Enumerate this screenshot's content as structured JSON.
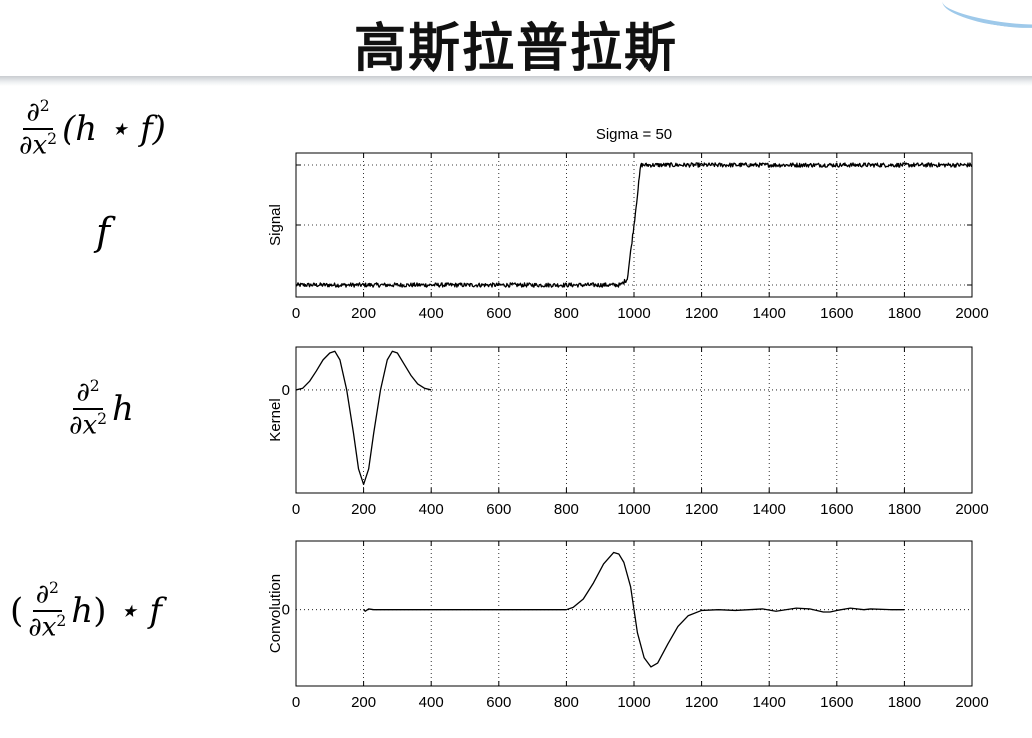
{
  "title": "高斯拉普拉斯",
  "formulas": {
    "top_derivative": "∂²/∂x²(h ⋆ f)",
    "signal": "f",
    "kernel": "∂²/∂x² h",
    "convolution": "(∂²/∂x² h) ⋆ f"
  },
  "colors": {
    "line": "#000000",
    "grid": "#000000",
    "axis": "#000000",
    "title_bar": "#c9ccd0"
  },
  "chart_data": [
    {
      "type": "line",
      "title": "Sigma = 50",
      "ylabel": "Signal",
      "xlabel": "",
      "xlim": [
        0,
        2000
      ],
      "xticks": [
        0,
        200,
        400,
        600,
        800,
        1000,
        1200,
        1400,
        1600,
        1800,
        2000
      ],
      "ylim": [
        -0.1,
        1.1
      ],
      "ytick_labels": [],
      "grid": true,
      "noise": 0.018,
      "x": [
        0,
        960,
        980,
        1000,
        1020,
        2000
      ],
      "y": [
        0,
        0,
        0.05,
        0.5,
        1,
        1
      ]
    },
    {
      "type": "line",
      "title": "",
      "ylabel": "Kernel",
      "xlabel": "",
      "xlim": [
        0,
        2000
      ],
      "xticks": [
        0,
        200,
        400,
        600,
        800,
        1000,
        1200,
        1400,
        1600,
        1800,
        2000
      ],
      "ylim": [
        -1.2,
        0.5
      ],
      "ytick_labels": [
        "0"
      ],
      "yticks": [
        0
      ],
      "grid": true,
      "x": [
        0,
        20,
        40,
        60,
        80,
        100,
        115,
        130,
        150,
        170,
        185,
        200,
        215,
        230,
        250,
        270,
        285,
        300,
        320,
        340,
        360,
        380,
        400
      ],
      "y": [
        0,
        0.02,
        0.1,
        0.22,
        0.35,
        0.43,
        0.45,
        0.35,
        0.0,
        -0.5,
        -0.92,
        -1.1,
        -0.92,
        -0.5,
        0.0,
        0.35,
        0.45,
        0.43,
        0.3,
        0.17,
        0.07,
        0.02,
        0.0
      ]
    },
    {
      "type": "line",
      "title": "",
      "ylabel": "Convolution",
      "xlabel": "",
      "xlim": [
        0,
        2000
      ],
      "xticks": [
        0,
        200,
        400,
        600,
        800,
        1000,
        1200,
        1400,
        1600,
        1800,
        2000
      ],
      "ylim": [
        -1.0,
        0.9
      ],
      "ytick_labels": [
        "0"
      ],
      "yticks": [
        0
      ],
      "grid": true,
      "x": [
        200,
        205,
        215,
        230,
        800,
        820,
        850,
        880,
        910,
        940,
        955,
        970,
        990,
        1000,
        1010,
        1030,
        1050,
        1070,
        1100,
        1130,
        1160,
        1200,
        1250,
        1300,
        1380,
        1420,
        1480,
        1520,
        1560,
        1580,
        1600,
        1640,
        1680,
        1700,
        1760,
        1800
      ],
      "y": [
        0,
        -0.02,
        0.01,
        0,
        0,
        0.03,
        0.14,
        0.35,
        0.6,
        0.75,
        0.73,
        0.62,
        0.3,
        0,
        -0.3,
        -0.63,
        -0.75,
        -0.7,
        -0.45,
        -0.22,
        -0.08,
        -0.01,
        0.0,
        -0.01,
        0.01,
        -0.02,
        0.02,
        0.01,
        -0.03,
        -0.03,
        -0.01,
        0.02,
        0.0,
        0.01,
        0.0,
        0.0
      ]
    }
  ]
}
